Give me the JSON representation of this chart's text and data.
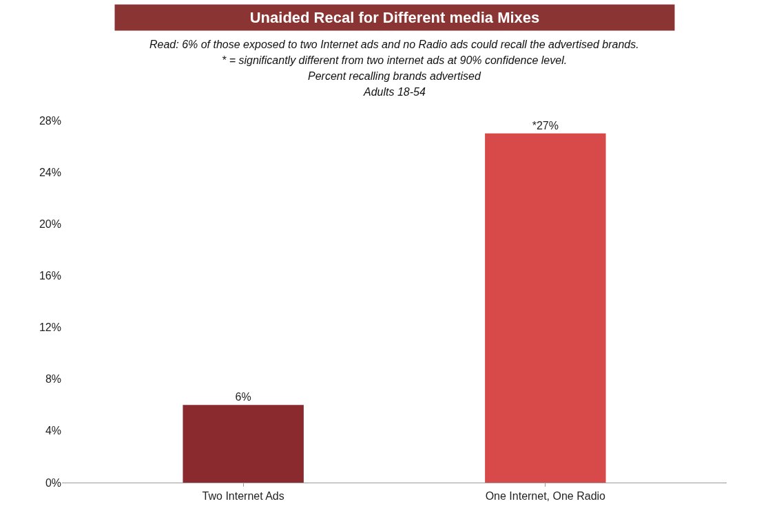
{
  "chart_data": {
    "type": "bar",
    "title": "Unaided Recal for Different media Mixes",
    "subtitle": "Read: 6% of those exposed to two Internet ads and no Radio ads could recall the advertised brands.\n* = significantly different from two internet ads at 90% confidence level.\nPercent recalling brands advertised\nAdults 18-54",
    "categories": [
      "Two Internet Ads",
      "One Internet, One Radio"
    ],
    "values": [
      6,
      27
    ],
    "colors": [
      "#8b2a2e",
      "#d84a4a"
    ],
    "value_labels": [
      "6%",
      "*27%"
    ],
    "ylim": [
      0,
      28
    ],
    "yticks": [
      {
        "value": 0,
        "label": "0%"
      },
      {
        "value": 4,
        "label": "4%"
      },
      {
        "value": 8,
        "label": "8%"
      },
      {
        "value": 12,
        "label": "12%"
      },
      {
        "value": 16,
        "label": "16%"
      },
      {
        "value": 20,
        "label": "20%"
      },
      {
        "value": 24,
        "label": "24%"
      },
      {
        "value": 28,
        "label": "28%"
      }
    ],
    "legend": false
  }
}
